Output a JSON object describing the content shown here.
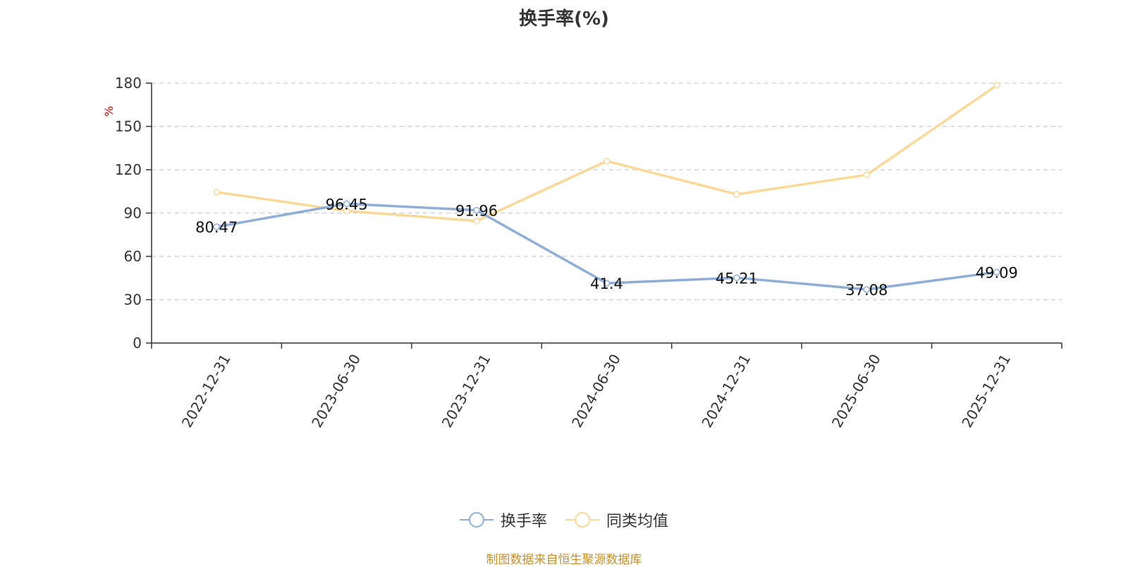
{
  "chart_data": {
    "type": "line",
    "title": "换手率(%)",
    "ylabel": "%",
    "categories": [
      "2022-12-31",
      "2023-06-30",
      "2023-12-31",
      "2024-06-30",
      "2024-12-31",
      "2025-06-30",
      "2025-12-31"
    ],
    "ylim": [
      0,
      180
    ],
    "yticks": [
      0,
      30,
      60,
      90,
      120,
      150,
      180
    ],
    "grid": true,
    "legend_position": "bottom",
    "series": [
      {
        "name": "换手率",
        "values": [
          80.47,
          96.45,
          91.96,
          41.4,
          45.21,
          37.08,
          49.09
        ],
        "labels": [
          "80.47",
          "96.45",
          "91.96",
          "41.4",
          "45.21",
          "37.08",
          "49.09"
        ],
        "color": "#8eaed8"
      },
      {
        "name": "同类均值",
        "values": [
          104.5,
          91.5,
          84.5,
          126.0,
          103.0,
          116.5,
          178.5
        ],
        "color": "#fad898"
      }
    ]
  },
  "source_note": "制图数据来自恒生聚源数据库"
}
